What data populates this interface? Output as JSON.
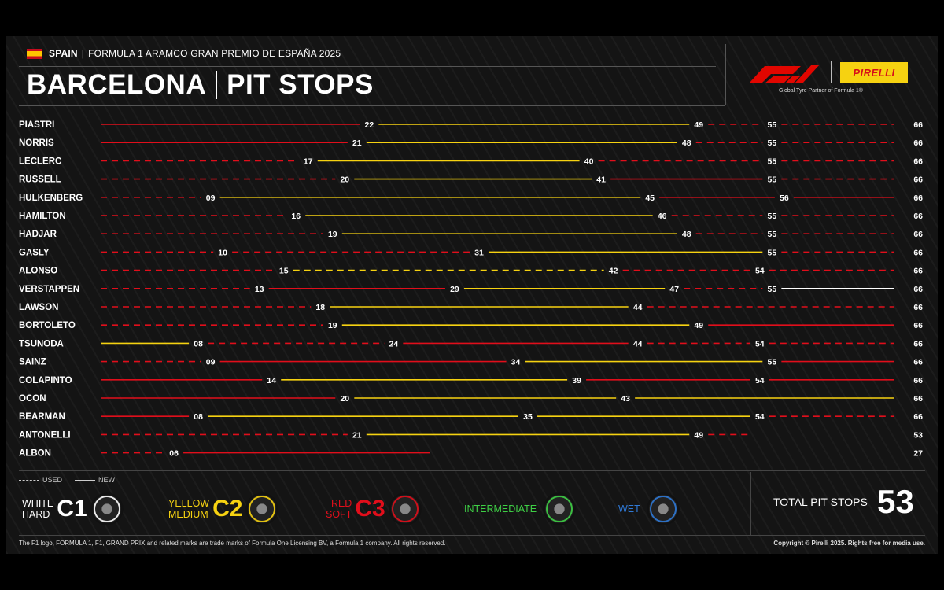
{
  "header": {
    "country": "SPAIN",
    "event": "FORMULA 1 ARAMCO GRAN PREMIO DE ESPAÑA 2025",
    "title_left": "BARCELONA",
    "title_right": "PIT STOPS",
    "pirelli": "PIRELLI",
    "partner": "Global Tyre Partner of Formula 1®"
  },
  "colors": {
    "hard": "#ffffff",
    "medium": "#f6d211",
    "soft": "#e10e1b",
    "intermediate": "#3ecf45",
    "wet": "#2f79d6"
  },
  "chart_data": {
    "type": "stint-timeline",
    "x_unit": "lap",
    "rows": [
      {
        "driver": "PIASTRI",
        "finish": 66,
        "stints": [
          {
            "c": "soft",
            "u": false,
            "e": 22
          },
          {
            "c": "medium",
            "u": false,
            "e": 49
          },
          {
            "c": "soft",
            "u": true,
            "e": 55
          },
          {
            "c": "soft",
            "u": true,
            "e": 66
          }
        ]
      },
      {
        "driver": "NORRIS",
        "finish": 66,
        "stints": [
          {
            "c": "soft",
            "u": false,
            "e": 21
          },
          {
            "c": "medium",
            "u": false,
            "e": 48
          },
          {
            "c": "soft",
            "u": true,
            "e": 55
          },
          {
            "c": "soft",
            "u": true,
            "e": 66
          }
        ]
      },
      {
        "driver": "LECLERC",
        "finish": 66,
        "stints": [
          {
            "c": "soft",
            "u": true,
            "e": 17
          },
          {
            "c": "medium",
            "u": false,
            "e": 40
          },
          {
            "c": "soft",
            "u": true,
            "e": 55
          },
          {
            "c": "soft",
            "u": true,
            "e": 66
          }
        ]
      },
      {
        "driver": "RUSSELL",
        "finish": 66,
        "stints": [
          {
            "c": "soft",
            "u": true,
            "e": 20
          },
          {
            "c": "medium",
            "u": false,
            "e": 41
          },
          {
            "c": "soft",
            "u": false,
            "e": 55
          },
          {
            "c": "soft",
            "u": true,
            "e": 66
          }
        ]
      },
      {
        "driver": "HULKENBERG",
        "finish": 66,
        "stints": [
          {
            "c": "soft",
            "u": true,
            "e": 9,
            "l": "09"
          },
          {
            "c": "medium",
            "u": false,
            "e": 45
          },
          {
            "c": "soft",
            "u": false,
            "e": 56
          },
          {
            "c": "soft",
            "u": false,
            "e": 66
          }
        ]
      },
      {
        "driver": "HAMILTON",
        "finish": 66,
        "stints": [
          {
            "c": "soft",
            "u": true,
            "e": 16
          },
          {
            "c": "medium",
            "u": false,
            "e": 46
          },
          {
            "c": "soft",
            "u": true,
            "e": 55
          },
          {
            "c": "soft",
            "u": true,
            "e": 66
          }
        ]
      },
      {
        "driver": "HADJAR",
        "finish": 66,
        "stints": [
          {
            "c": "soft",
            "u": true,
            "e": 19
          },
          {
            "c": "medium",
            "u": false,
            "e": 48
          },
          {
            "c": "soft",
            "u": true,
            "e": 55
          },
          {
            "c": "soft",
            "u": true,
            "e": 66
          }
        ]
      },
      {
        "driver": "GASLY",
        "finish": 66,
        "stints": [
          {
            "c": "soft",
            "u": true,
            "e": 10
          },
          {
            "c": "soft",
            "u": true,
            "e": 31
          },
          {
            "c": "medium",
            "u": false,
            "e": 55
          },
          {
            "c": "soft",
            "u": true,
            "e": 66
          }
        ]
      },
      {
        "driver": "ALONSO",
        "finish": 66,
        "stints": [
          {
            "c": "soft",
            "u": true,
            "e": 15
          },
          {
            "c": "medium",
            "u": true,
            "e": 42
          },
          {
            "c": "soft",
            "u": true,
            "e": 54
          },
          {
            "c": "soft",
            "u": true,
            "e": 66
          }
        ]
      },
      {
        "driver": "VERSTAPPEN",
        "finish": 66,
        "stints": [
          {
            "c": "soft",
            "u": true,
            "e": 13
          },
          {
            "c": "soft",
            "u": false,
            "e": 29
          },
          {
            "c": "medium",
            "u": false,
            "e": 47
          },
          {
            "c": "soft",
            "u": true,
            "e": 55
          },
          {
            "c": "hard",
            "u": false,
            "e": 66
          }
        ]
      },
      {
        "driver": "LAWSON",
        "finish": 66,
        "stints": [
          {
            "c": "soft",
            "u": true,
            "e": 18
          },
          {
            "c": "medium",
            "u": false,
            "e": 44
          },
          {
            "c": "soft",
            "u": true,
            "e": 66
          }
        ]
      },
      {
        "driver": "BORTOLETO",
        "finish": 66,
        "stints": [
          {
            "c": "soft",
            "u": true,
            "e": 19
          },
          {
            "c": "medium",
            "u": false,
            "e": 49
          },
          {
            "c": "soft",
            "u": false,
            "e": 66
          }
        ]
      },
      {
        "driver": "TSUNODA",
        "finish": 66,
        "stints": [
          {
            "c": "medium",
            "u": false,
            "e": 8,
            "l": "08"
          },
          {
            "c": "soft",
            "u": true,
            "e": 24
          },
          {
            "c": "soft",
            "u": false,
            "e": 44
          },
          {
            "c": "soft",
            "u": true,
            "e": 54
          },
          {
            "c": "soft",
            "u": true,
            "e": 66
          }
        ]
      },
      {
        "driver": "SAINZ",
        "finish": 66,
        "stints": [
          {
            "c": "soft",
            "u": true,
            "e": 9,
            "l": "09"
          },
          {
            "c": "soft",
            "u": false,
            "e": 34
          },
          {
            "c": "medium",
            "u": false,
            "e": 55
          },
          {
            "c": "soft",
            "u": false,
            "e": 66
          }
        ]
      },
      {
        "driver": "COLAPINTO",
        "finish": 66,
        "stints": [
          {
            "c": "soft",
            "u": false,
            "e": 14
          },
          {
            "c": "medium",
            "u": false,
            "e": 39
          },
          {
            "c": "soft",
            "u": false,
            "e": 54
          },
          {
            "c": "soft",
            "u": false,
            "e": 66
          }
        ]
      },
      {
        "driver": "OCON",
        "finish": 66,
        "stints": [
          {
            "c": "soft",
            "u": false,
            "e": 20
          },
          {
            "c": "medium",
            "u": false,
            "e": 43
          },
          {
            "c": "medium",
            "u": false,
            "e": 66
          }
        ]
      },
      {
        "driver": "BEARMAN",
        "finish": 66,
        "stints": [
          {
            "c": "soft",
            "u": false,
            "e": 8,
            "l": "08"
          },
          {
            "c": "medium",
            "u": false,
            "e": 35
          },
          {
            "c": "medium",
            "u": false,
            "e": 54
          },
          {
            "c": "soft",
            "u": true,
            "e": 66
          }
        ]
      },
      {
        "driver": "ANTONELLI",
        "finish": 53,
        "stints": [
          {
            "c": "soft",
            "u": true,
            "e": 21
          },
          {
            "c": "medium",
            "u": false,
            "e": 49
          },
          {
            "c": "soft",
            "u": true,
            "e": 53
          }
        ]
      },
      {
        "driver": "ALBON",
        "finish": 27,
        "stints": [
          {
            "c": "soft",
            "u": true,
            "e": 6,
            "l": "06"
          },
          {
            "c": "soft",
            "u": false,
            "e": 27
          }
        ]
      }
    ]
  },
  "legend": {
    "used": "USED",
    "new": "NEW",
    "c1_name1": "WHITE",
    "c1_name2": "HARD",
    "c1_code": "C1",
    "c2_name1": "YELLOW",
    "c2_name2": "MEDIUM",
    "c2_code": "C2",
    "c3_name1": "RED",
    "c3_name2": "SOFT",
    "c3_code": "C3",
    "intermediate": "INTERMEDIATE",
    "wet": "WET"
  },
  "total": {
    "label": "TOTAL PIT STOPS",
    "value": "53"
  },
  "footer": {
    "left": "The F1 logo, FORMULA 1, F1, GRAND PRIX and related marks are trade marks of Formula One Licensing BV, a Formula 1 company. All rights reserved.",
    "right": "Copyright © Pirelli 2025. Rights free for media use."
  }
}
